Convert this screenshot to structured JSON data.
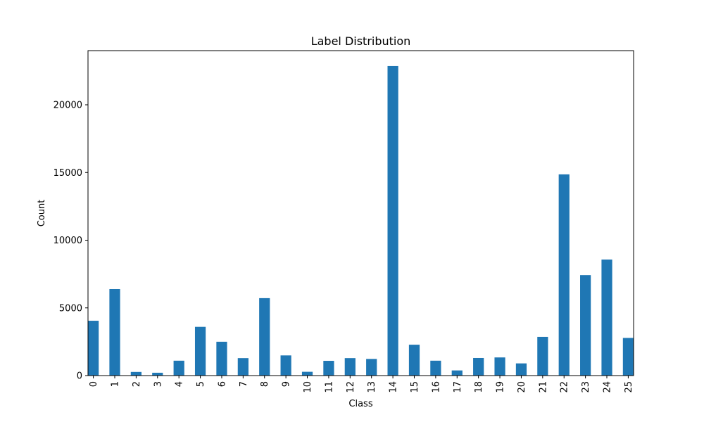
{
  "chart_data": {
    "type": "bar",
    "title": "Label Distribution",
    "xlabel": "Class",
    "ylabel": "Count",
    "categories": [
      "0",
      "1",
      "2",
      "3",
      "4",
      "5",
      "6",
      "7",
      "8",
      "9",
      "10",
      "11",
      "12",
      "13",
      "14",
      "15",
      "16",
      "17",
      "18",
      "19",
      "20",
      "21",
      "22",
      "23",
      "24",
      "25"
    ],
    "values": [
      4050,
      6390,
      270,
      210,
      1100,
      3600,
      2500,
      1290,
      5720,
      1490,
      280,
      1090,
      1290,
      1230,
      22860,
      2280,
      1100,
      380,
      1300,
      1340,
      900,
      2860,
      14860,
      7420,
      8570,
      2780
    ],
    "ylim": [
      0,
      24000
    ],
    "yticks": [
      0,
      5000,
      10000,
      15000,
      20000
    ],
    "ytick_labels": [
      "0",
      "5000",
      "10000",
      "15000",
      "20000"
    ],
    "grid": false,
    "legend": "none",
    "bar_color": "#1f77b4"
  }
}
